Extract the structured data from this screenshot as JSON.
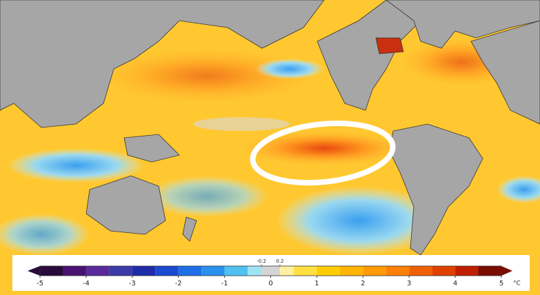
{
  "colorbar": {
    "levels": [
      -5,
      -4.5,
      -4,
      -3.5,
      -3,
      -2.5,
      -2,
      -1.5,
      -1,
      -0.5,
      -0.2,
      0.2,
      0.5,
      1,
      1.5,
      2,
      2.5,
      3,
      3.5,
      4,
      4.5,
      5
    ],
    "colors": [
      "#2a0a3a",
      "#4a1270",
      "#5a2a9a",
      "#3a3aa8",
      "#1e2ca8",
      "#1a4ad0",
      "#1e6ee8",
      "#2a90f0",
      "#50c0f0",
      "#a0e4f4",
      "#d4d4d4",
      "#fff0a0",
      "#ffe040",
      "#ffcc00",
      "#ffb400",
      "#ff9a00",
      "#ff8000",
      "#f06000",
      "#e04000",
      "#c02000",
      "#7a0c00"
    ],
    "ticks": [
      -5,
      -4,
      -3,
      -2,
      -1,
      0,
      1,
      2,
      3,
      4,
      5
    ],
    "fine_ticks": [
      -0.2,
      0.2
    ],
    "unit": "°C"
  }
}
